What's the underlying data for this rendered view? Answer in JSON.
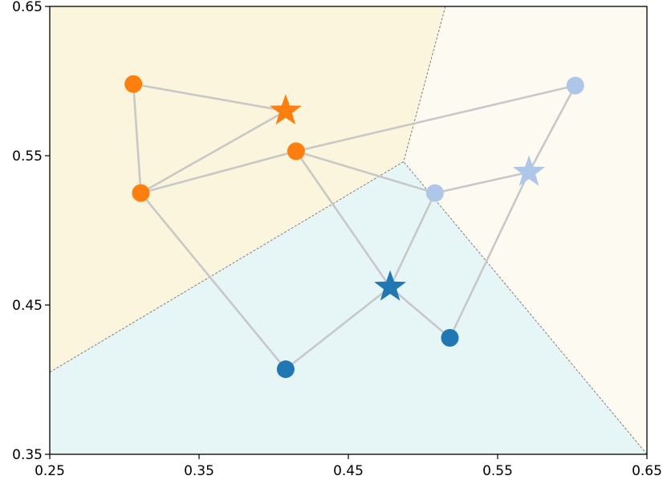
{
  "chart_data": {
    "type": "scatter",
    "title": "",
    "xlabel": "",
    "ylabel": "",
    "xlim": [
      0.25,
      0.65
    ],
    "ylim": [
      0.35,
      0.65
    ],
    "x_ticks": [
      "0.25",
      "0.35",
      "0.45",
      "0.55",
      "0.65"
    ],
    "y_ticks": [
      "0.35",
      "0.45",
      "0.55",
      "0.65"
    ],
    "grid": false,
    "regions": [
      {
        "color": "#faf5dc",
        "polygon": [
          [
            0.25,
            0.405
          ],
          [
            0.25,
            0.65
          ],
          [
            0.515,
            0.65
          ],
          [
            0.487,
            0.546
          ]
        ]
      },
      {
        "color": "#fdfaf2",
        "polygon": [
          [
            0.515,
            0.65
          ],
          [
            0.65,
            0.65
          ],
          [
            0.65,
            0.35
          ],
          [
            0.487,
            0.546
          ]
        ]
      },
      {
        "color": "#e6f6f6",
        "polygon": [
          [
            0.25,
            0.35
          ],
          [
            0.65,
            0.35
          ],
          [
            0.487,
            0.546
          ],
          [
            0.25,
            0.405
          ]
        ]
      }
    ],
    "boundary_color": "#808080",
    "edge_color": "#c8c8c8",
    "clusters": [
      {
        "color": "#ff7f0e",
        "points": [
          [
            0.306,
            0.598
          ],
          [
            0.415,
            0.553
          ],
          [
            0.311,
            0.525
          ]
        ],
        "centroid": [
          0.408,
          0.58
        ]
      },
      {
        "color": "#aec7e8",
        "points": [
          [
            0.602,
            0.597
          ],
          [
            0.508,
            0.525
          ]
        ],
        "centroid": [
          0.571,
          0.539
        ]
      },
      {
        "color": "#1f77b4",
        "points": [
          [
            0.408,
            0.407
          ],
          [
            0.518,
            0.428
          ]
        ],
        "centroid": [
          0.478,
          0.462
        ]
      }
    ],
    "edges": [
      [
        [
          0.306,
          0.598
        ],
        [
          0.408,
          0.58
        ]
      ],
      [
        [
          0.306,
          0.598
        ],
        [
          0.311,
          0.525
        ]
      ],
      [
        [
          0.311,
          0.525
        ],
        [
          0.408,
          0.58
        ]
      ],
      [
        [
          0.311,
          0.525
        ],
        [
          0.415,
          0.553
        ]
      ],
      [
        [
          0.415,
          0.553
        ],
        [
          0.602,
          0.597
        ]
      ],
      [
        [
          0.415,
          0.553
        ],
        [
          0.508,
          0.525
        ]
      ],
      [
        [
          0.415,
          0.553
        ],
        [
          0.478,
          0.462
        ]
      ],
      [
        [
          0.311,
          0.525
        ],
        [
          0.408,
          0.407
        ]
      ],
      [
        [
          0.408,
          0.407
        ],
        [
          0.478,
          0.462
        ]
      ],
      [
        [
          0.478,
          0.462
        ],
        [
          0.508,
          0.525
        ]
      ],
      [
        [
          0.478,
          0.462
        ],
        [
          0.518,
          0.428
        ]
      ],
      [
        [
          0.508,
          0.525
        ],
        [
          0.571,
          0.539
        ]
      ],
      [
        [
          0.602,
          0.597
        ],
        [
          0.571,
          0.539
        ]
      ],
      [
        [
          0.571,
          0.539
        ],
        [
          0.518,
          0.428
        ]
      ]
    ]
  }
}
